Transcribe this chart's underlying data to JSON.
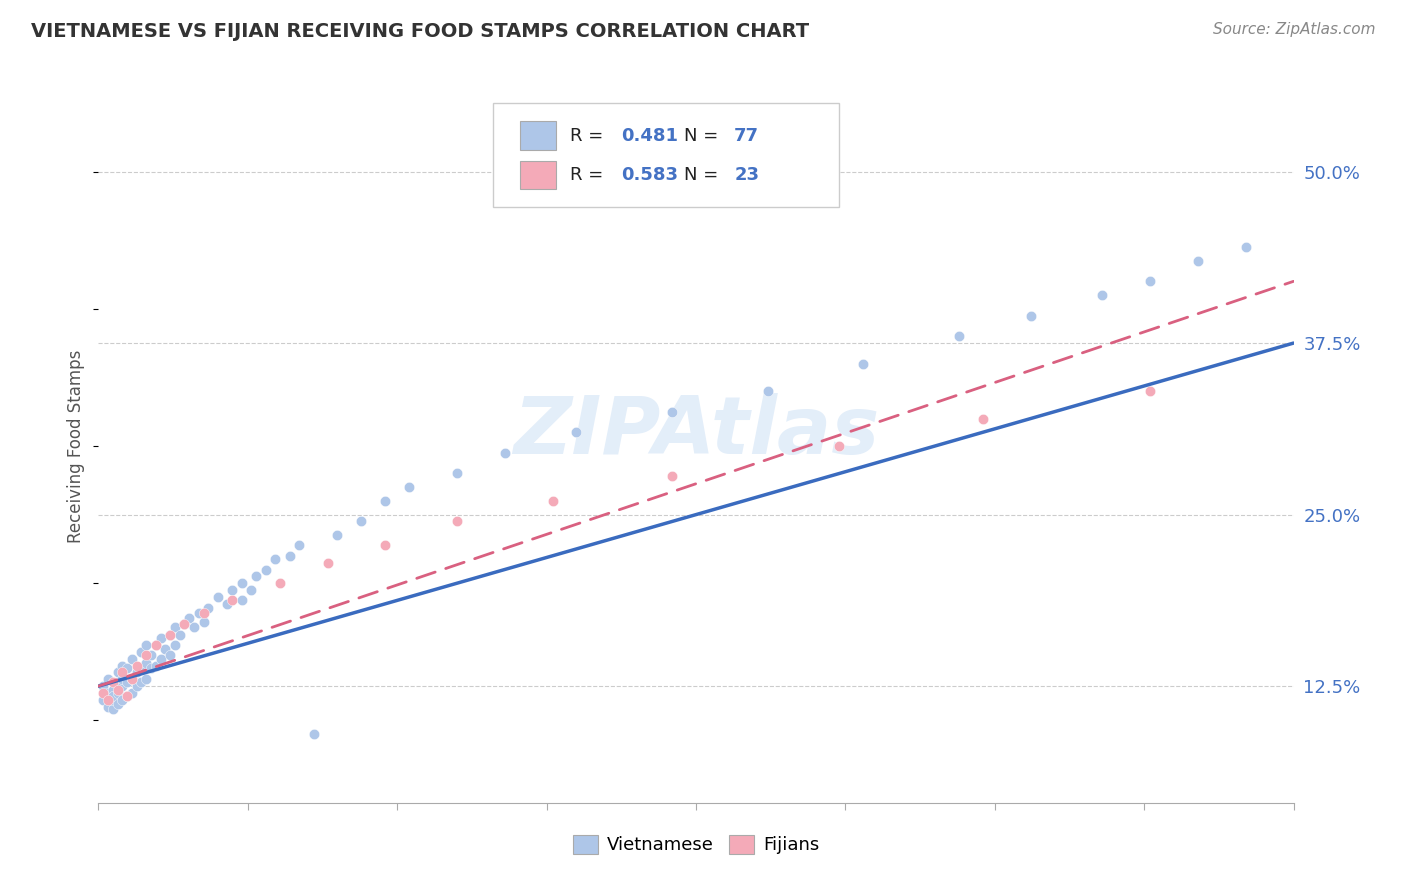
{
  "title": "VIETNAMESE VS FIJIAN RECEIVING FOOD STAMPS CORRELATION CHART",
  "source": "Source: ZipAtlas.com",
  "ylabel": "Receiving Food Stamps",
  "yticks_labels": [
    "12.5%",
    "25.0%",
    "37.5%",
    "50.0%"
  ],
  "ytick_vals": [
    0.125,
    0.25,
    0.375,
    0.5
  ],
  "xlim": [
    0.0,
    0.25
  ],
  "ylim": [
    0.04,
    0.56
  ],
  "viet_color": "#aec6e8",
  "viet_line_color": "#3a6bbf",
  "fijian_color": "#f4aab8",
  "fijian_line_color": "#d96080",
  "R_viet": 0.481,
  "N_viet": 77,
  "R_fijian": 0.583,
  "N_fijian": 23,
  "watermark": "ZIPAtlas",
  "viet_x": [
    0.001,
    0.001,
    0.002,
    0.002,
    0.002,
    0.003,
    0.003,
    0.003,
    0.003,
    0.004,
    0.004,
    0.004,
    0.004,
    0.005,
    0.005,
    0.005,
    0.005,
    0.006,
    0.006,
    0.006,
    0.007,
    0.007,
    0.007,
    0.008,
    0.008,
    0.009,
    0.009,
    0.009,
    0.01,
    0.01,
    0.01,
    0.011,
    0.011,
    0.012,
    0.012,
    0.013,
    0.013,
    0.014,
    0.015,
    0.015,
    0.016,
    0.016,
    0.017,
    0.018,
    0.019,
    0.02,
    0.021,
    0.022,
    0.023,
    0.025,
    0.027,
    0.028,
    0.03,
    0.03,
    0.032,
    0.033,
    0.035,
    0.037,
    0.04,
    0.042,
    0.045,
    0.05,
    0.055,
    0.06,
    0.065,
    0.075,
    0.085,
    0.1,
    0.12,
    0.14,
    0.16,
    0.18,
    0.195,
    0.21,
    0.22,
    0.23,
    0.24
  ],
  "viet_y": [
    0.115,
    0.125,
    0.11,
    0.12,
    0.13,
    0.108,
    0.115,
    0.122,
    0.118,
    0.112,
    0.12,
    0.128,
    0.135,
    0.115,
    0.125,
    0.13,
    0.14,
    0.118,
    0.128,
    0.138,
    0.12,
    0.13,
    0.145,
    0.125,
    0.135,
    0.128,
    0.138,
    0.15,
    0.13,
    0.142,
    0.155,
    0.138,
    0.148,
    0.14,
    0.155,
    0.145,
    0.16,
    0.152,
    0.148,
    0.162,
    0.155,
    0.168,
    0.162,
    0.17,
    0.175,
    0.168,
    0.178,
    0.172,
    0.182,
    0.19,
    0.185,
    0.195,
    0.188,
    0.2,
    0.195,
    0.205,
    0.21,
    0.218,
    0.22,
    0.228,
    0.09,
    0.235,
    0.245,
    0.26,
    0.27,
    0.28,
    0.295,
    0.31,
    0.325,
    0.34,
    0.36,
    0.38,
    0.395,
    0.41,
    0.42,
    0.435,
    0.445
  ],
  "fiji_x": [
    0.001,
    0.002,
    0.003,
    0.004,
    0.005,
    0.006,
    0.007,
    0.008,
    0.01,
    0.012,
    0.015,
    0.018,
    0.022,
    0.028,
    0.038,
    0.048,
    0.06,
    0.075,
    0.095,
    0.12,
    0.155,
    0.185,
    0.22
  ],
  "fiji_y": [
    0.12,
    0.115,
    0.128,
    0.122,
    0.135,
    0.118,
    0.13,
    0.14,
    0.148,
    0.155,
    0.162,
    0.17,
    0.178,
    0.188,
    0.2,
    0.215,
    0.228,
    0.245,
    0.26,
    0.278,
    0.3,
    0.32,
    0.34
  ]
}
